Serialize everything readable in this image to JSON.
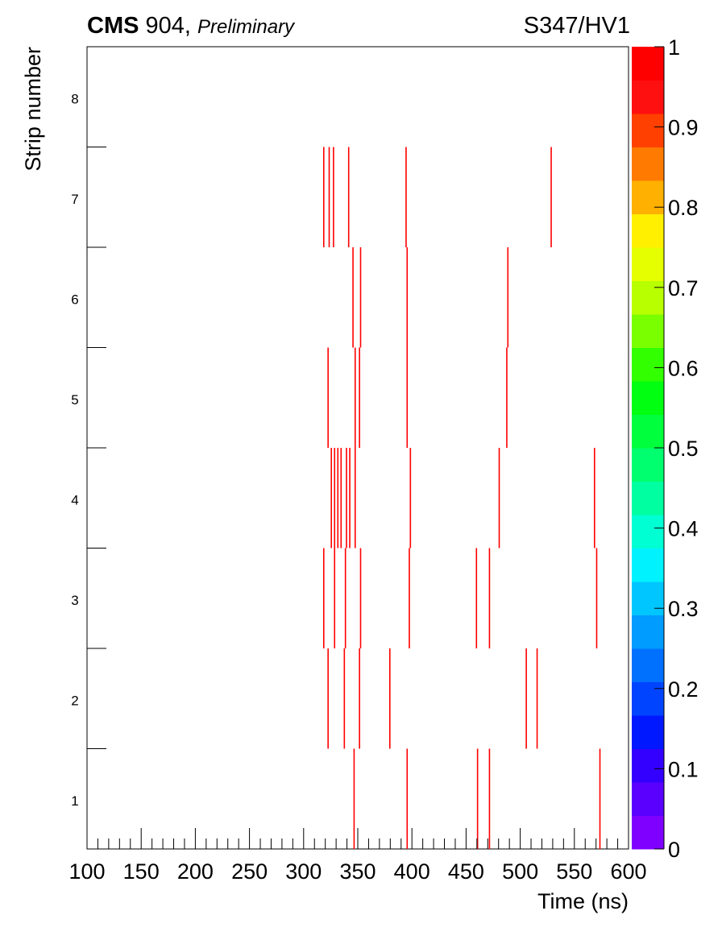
{
  "header": {
    "experiment": "CMS",
    "site": "904,",
    "status": "Preliminary",
    "run_label": "S347/HV1"
  },
  "chart_data": {
    "type": "heatmap",
    "xlabel": "Time (ns)",
    "ylabel": "Strip number",
    "xlim": [
      100,
      600
    ],
    "ylim": [
      0.5,
      8.5
    ],
    "x_ticks": [
      100,
      150,
      200,
      250,
      300,
      350,
      400,
      450,
      500,
      550,
      600
    ],
    "y_ticks": [
      1,
      2,
      3,
      4,
      5,
      6,
      7,
      8
    ],
    "colorbar": {
      "range": [
        0,
        1
      ],
      "ticks": [
        0,
        0.1,
        0.2,
        0.3,
        0.4,
        0.5,
        0.6,
        0.7,
        0.8,
        0.9,
        1
      ],
      "tick_labels": [
        "0",
        "0.1",
        "0.2",
        "0.3",
        "0.4",
        "0.5",
        "0.6",
        "0.7",
        "0.8",
        "0.9",
        "1"
      ],
      "colors": [
        "#7f00ff",
        "#5a00ff",
        "#3300ff",
        "#0018ff",
        "#0044ff",
        "#0070ff",
        "#009cff",
        "#00c6ff",
        "#00f2ff",
        "#00ffd2",
        "#00ffa0",
        "#00ff6e",
        "#00ff3c",
        "#00ff10",
        "#32ff00",
        "#7aff00",
        "#b8ff00",
        "#e5ff00",
        "#fff000",
        "#ffb000",
        "#ff7a00",
        "#ff4000",
        "#ff1010",
        "#ff0000"
      ]
    },
    "hit_color": "#ff0000",
    "hit_value": 1,
    "hits": [
      {
        "strip": 1,
        "times": [
          346,
          395,
          460,
          471,
          573
        ]
      },
      {
        "strip": 2,
        "times": [
          322,
          337,
          351,
          379,
          505,
          515
        ]
      },
      {
        "strip": 3,
        "times": [
          318,
          328,
          338,
          352,
          397,
          459,
          471,
          570
        ]
      },
      {
        "strip": 4,
        "times": [
          325,
          328,
          331,
          334,
          339,
          342,
          347,
          398,
          480,
          568
        ]
      },
      {
        "strip": 5,
        "times": [
          322,
          347,
          351,
          395,
          487
        ]
      },
      {
        "strip": 6,
        "times": [
          345,
          352,
          395,
          488
        ]
      },
      {
        "strip": 7,
        "times": [
          318,
          323,
          327,
          341,
          394,
          528
        ]
      }
    ]
  }
}
